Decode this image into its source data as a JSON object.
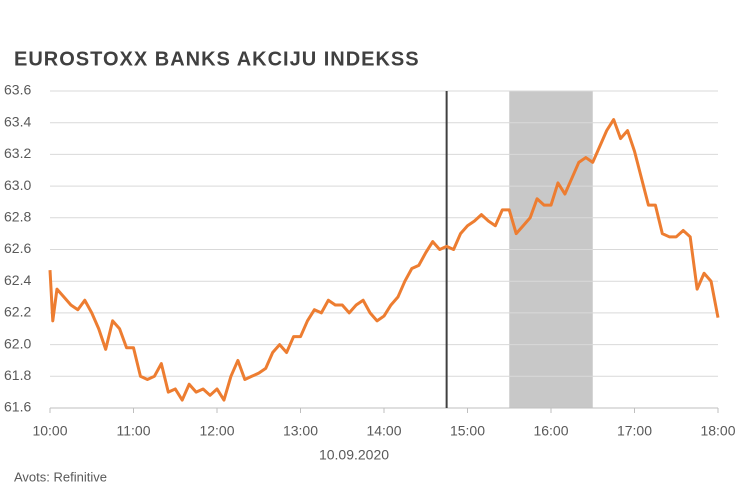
{
  "chart_data": {
    "type": "line",
    "title": "EUROSTOXX BANKS AKCIJU INDEKSS",
    "x_annotation": "10.09.2020",
    "source": "Avots: Refinitive",
    "x": [
      "10:00",
      "10:02",
      "10:05",
      "10:10",
      "10:15",
      "10:20",
      "10:25",
      "10:30",
      "10:35",
      "10:40",
      "10:45",
      "10:50",
      "10:55",
      "11:00",
      "11:05",
      "11:10",
      "11:15",
      "11:20",
      "11:25",
      "11:30",
      "11:35",
      "11:40",
      "11:45",
      "11:50",
      "11:55",
      "12:00",
      "12:05",
      "12:10",
      "12:15",
      "12:20",
      "12:25",
      "12:30",
      "12:35",
      "12:40",
      "12:45",
      "12:50",
      "12:55",
      "13:00",
      "13:05",
      "13:10",
      "13:15",
      "13:20",
      "13:25",
      "13:30",
      "13:35",
      "13:40",
      "13:45",
      "13:50",
      "13:55",
      "14:00",
      "14:05",
      "14:10",
      "14:15",
      "14:20",
      "14:25",
      "14:30",
      "14:35",
      "14:40",
      "14:45",
      "14:50",
      "14:55",
      "15:00",
      "15:05",
      "15:10",
      "15:15",
      "15:20",
      "15:25",
      "15:30",
      "15:35",
      "15:40",
      "15:45",
      "15:50",
      "15:55",
      "16:00",
      "16:05",
      "16:10",
      "16:15",
      "16:20",
      "16:25",
      "16:30",
      "16:35",
      "16:40",
      "16:45",
      "16:50",
      "16:55",
      "17:00",
      "17:05",
      "17:10",
      "17:15",
      "17:20",
      "17:25",
      "17:30",
      "17:35",
      "17:40",
      "17:45",
      "17:50",
      "17:55",
      "18:00"
    ],
    "series": [
      {
        "color": "#ed7d31",
        "values": [
          62.47,
          62.15,
          62.35,
          62.3,
          62.25,
          62.22,
          62.28,
          62.2,
          62.1,
          61.97,
          62.15,
          62.1,
          61.98,
          61.98,
          61.8,
          61.78,
          61.8,
          61.88,
          61.7,
          61.72,
          61.65,
          61.75,
          61.7,
          61.72,
          61.68,
          61.72,
          61.65,
          61.8,
          61.9,
          61.78,
          61.8,
          61.82,
          61.85,
          61.95,
          62.0,
          61.95,
          62.05,
          62.05,
          62.15,
          62.22,
          62.2,
          62.28,
          62.25,
          62.25,
          62.2,
          62.25,
          62.28,
          62.2,
          62.15,
          62.18,
          62.25,
          62.3,
          62.4,
          62.48,
          62.5,
          62.58,
          62.65,
          62.6,
          62.62,
          62.6,
          62.7,
          62.75,
          62.78,
          62.82,
          62.78,
          62.75,
          62.85,
          62.85,
          62.7,
          62.75,
          62.8,
          62.92,
          62.88,
          62.88,
          63.02,
          62.95,
          63.05,
          63.15,
          63.18,
          63.15,
          63.25,
          63.35,
          63.42,
          63.3,
          63.35,
          63.22,
          63.05,
          62.88,
          62.88,
          62.7,
          62.68,
          62.68,
          62.72,
          62.68,
          62.35,
          62.45,
          62.4,
          62.17
        ]
      }
    ],
    "xlim": [
      "10:00",
      "18:00"
    ],
    "xticks": [
      "10:00",
      "11:00",
      "12:00",
      "13:00",
      "14:00",
      "15:00",
      "16:00",
      "17:00",
      "18:00"
    ],
    "ylim": [
      61.6,
      63.6
    ],
    "yticks": [
      {
        "value": 61.6,
        "label": "61.6"
      },
      {
        "value": 61.8,
        "label": "61.8"
      },
      {
        "value": 62,
        "label": "62.0"
      },
      {
        "value": 62.2,
        "label": "62.2"
      },
      {
        "value": 62.4,
        "label": "62.4"
      },
      {
        "value": 62.6,
        "label": "62.6"
      },
      {
        "value": 62.8,
        "label": "62.8"
      },
      {
        "value": 63,
        "label": "63.0"
      },
      {
        "value": 63.2,
        "label": "63.2"
      },
      {
        "value": 63.4,
        "label": "63.4"
      },
      {
        "value": 63.6,
        "label": "63.6"
      }
    ],
    "grid": true,
    "vline": "14:45",
    "shaded_region": [
      "15:30",
      "16:30"
    ]
  }
}
